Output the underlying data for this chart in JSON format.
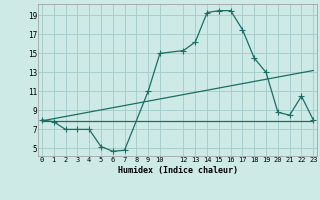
{
  "xlabel": "Humidex (Indice chaleur)",
  "background_color": "#ceeae6",
  "grid_color": "#a8cece",
  "line_color": "#1a6e64",
  "x_ticks": [
    0,
    1,
    2,
    3,
    4,
    5,
    6,
    7,
    8,
    9,
    10,
    12,
    13,
    14,
    15,
    16,
    17,
    18,
    19,
    20,
    21,
    22,
    23
  ],
  "x_tick_labels": [
    "0",
    "1",
    "2",
    "3",
    "4",
    "5",
    "6",
    "7",
    "8",
    "9",
    "10",
    "12",
    "13",
    "14",
    "15",
    "16",
    "17",
    "18",
    "19",
    "20",
    "21",
    "22",
    "23"
  ],
  "y_ticks": [
    5,
    7,
    9,
    11,
    13,
    15,
    17,
    19
  ],
  "y_tick_labels": [
    "5",
    "7",
    "9",
    "11",
    "13",
    "15",
    "17",
    "19"
  ],
  "xlim": [
    -0.3,
    23.3
  ],
  "ylim": [
    4.2,
    20.2
  ],
  "line1_x": [
    0,
    1,
    2,
    3,
    4,
    5,
    6,
    7,
    9,
    10,
    12,
    13,
    14,
    15,
    16,
    17,
    18,
    19,
    20,
    21,
    22,
    23
  ],
  "line1_y": [
    8.0,
    7.8,
    7.0,
    7.0,
    7.0,
    5.2,
    4.7,
    4.8,
    11.0,
    15.0,
    15.3,
    16.2,
    19.3,
    19.5,
    19.5,
    17.5,
    14.5,
    13.0,
    8.8,
    8.5,
    10.5,
    8.0
  ],
  "line2_x": [
    0,
    23
  ],
  "line2_y": [
    7.9,
    7.9
  ],
  "line3_x": [
    0,
    23
  ],
  "line3_y": [
    7.9,
    13.2
  ]
}
